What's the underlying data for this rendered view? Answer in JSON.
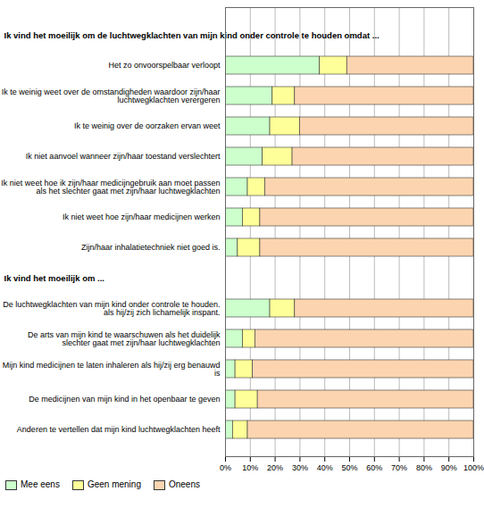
{
  "chart_data": {
    "type": "bar",
    "orientation": "horizontal",
    "stacked": true,
    "section_titles": [
      "Ik vind het moeilijk om de luchtwegklachten van mijn kind onder controle te houden omdat ...",
      "Ik vind het moeilijk om ..."
    ],
    "categories": [
      null,
      "Het zo onvoorspelbaar verloopt",
      "Ik te weinig weet over de omstandigheden waardoor zijn/haar luchtwegklachten verergeren",
      "Ik te weinig over de oorzaken ervan weet",
      "Ik niet aanvoel wanneer zijn/haar toestand verslechtert",
      "Ik niet weet hoe ik zijn/haar medicijngebruik aan moet passen als het slechter gaat met zijn/haar luchtwegklachten",
      "Ik niet weet hoe zijn/haar medicijnen werken",
      "Zijn/haar inhalatietechniek niet goed is.",
      null,
      "De luchtwegklachten van mijn kind onder controle te houden. als hij/zij zich lichamelijk inspant.",
      "De arts van mijn kind te waarschuwen als het duidelijk slechter gaat met zijn/haar luchtwegklachten",
      "Mijn kind medicijnen te laten inhaleren als hij/zij erg benauwd is",
      "De medicijnen van mijn kind in het openbaar te geven",
      "Anderen te vertellen dat mijn kind luchtwegklachten heeft"
    ],
    "series": [
      {
        "name": "Mee eens",
        "color": "#ccffcc",
        "values": [
          null,
          38,
          19,
          18,
          15,
          9,
          7,
          5,
          null,
          18,
          7,
          4,
          4,
          3
        ]
      },
      {
        "name": "Geen mening",
        "color": "#ffff99",
        "values": [
          null,
          11,
          9,
          12,
          12,
          7,
          7,
          9,
          null,
          10,
          5,
          7,
          9,
          6
        ]
      },
      {
        "name": "Oneens",
        "color": "#fcd5b0",
        "values": [
          null,
          51,
          72,
          70,
          73,
          84,
          86,
          86,
          null,
          72,
          88,
          89,
          87,
          91
        ]
      }
    ],
    "xlim": [
      0,
      100
    ],
    "xticks": [
      {
        "value": 0,
        "label": "0%"
      },
      {
        "value": 10,
        "label": "10%"
      },
      {
        "value": 20,
        "label": "20%"
      },
      {
        "value": 30,
        "label": "30%"
      },
      {
        "value": 40,
        "label": "40%"
      },
      {
        "value": 50,
        "label": "50%"
      },
      {
        "value": 60,
        "label": "60%"
      },
      {
        "value": 70,
        "label": "70%"
      },
      {
        "value": 80,
        "label": "80%"
      },
      {
        "value": 90,
        "label": "90%"
      },
      {
        "value": 100,
        "label": "100%"
      }
    ],
    "grid": true,
    "legend": "bottom-left"
  }
}
